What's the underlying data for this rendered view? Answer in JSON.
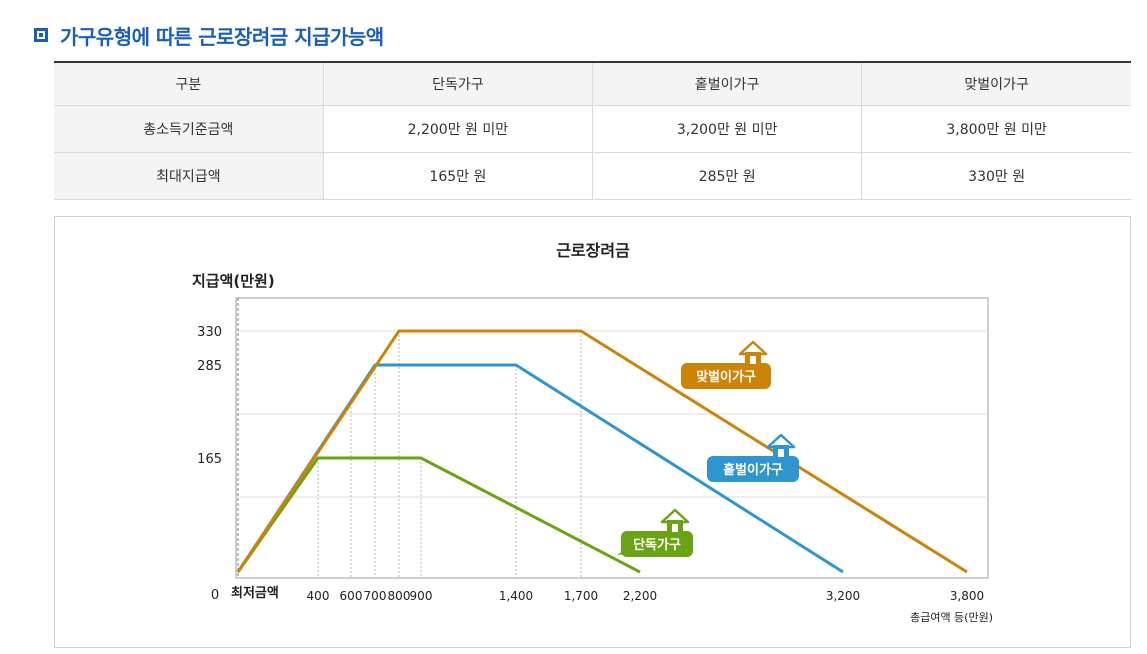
{
  "page_title": "가구유형에 따른 근로장려금 지급가능액",
  "table": {
    "headers": [
      "구분",
      "단독가구",
      "홑벌이가구",
      "맞벌이가구"
    ],
    "rows": [
      [
        "총소득기준금액",
        "2,200만 원 미만",
        "3,200만 원 미만",
        "3,800만 원 미만"
      ],
      [
        "최대지급액",
        "165만 원",
        "285만 원",
        "330만 원"
      ]
    ]
  },
  "chart_data": {
    "type": "line",
    "title": "근로장려금",
    "ylabel": "지급액(만원)",
    "xlabel": "총급여액 등(만원)",
    "x_origin_label": "최저금액",
    "y_ticks": [
      330,
      285,
      165
    ],
    "y_zero_label": "0",
    "x_ticks": [
      {
        "value": 400,
        "label": "400"
      },
      {
        "value": 600,
        "label": "600"
      },
      {
        "value": 700,
        "label": "700"
      },
      {
        "value": 800,
        "label": "800"
      },
      {
        "value": 900,
        "label": "900"
      },
      {
        "value": 1400,
        "label": "1,400"
      },
      {
        "value": 1700,
        "label": "1,700"
      },
      {
        "value": 2200,
        "label": "2,200"
      },
      {
        "value": 3200,
        "label": "3,200"
      },
      {
        "value": 3800,
        "label": "3,800"
      }
    ],
    "ylim": [
      0,
      330
    ],
    "grid": true,
    "series": [
      {
        "name": "단독가구",
        "color": "#6aa313",
        "points": [
          [
            0,
            0
          ],
          [
            400,
            165
          ],
          [
            900,
            165
          ],
          [
            2200,
            0
          ]
        ]
      },
      {
        "name": "홑벌이가구",
        "color": "#2f95d1",
        "points": [
          [
            0,
            0
          ],
          [
            700,
            285
          ],
          [
            1400,
            285
          ],
          [
            3200,
            0
          ]
        ]
      },
      {
        "name": "맞벌이가구",
        "color": "#cc8408",
        "points": [
          [
            0,
            0
          ],
          [
            800,
            330
          ],
          [
            1700,
            330
          ],
          [
            3800,
            0
          ]
        ]
      }
    ]
  }
}
